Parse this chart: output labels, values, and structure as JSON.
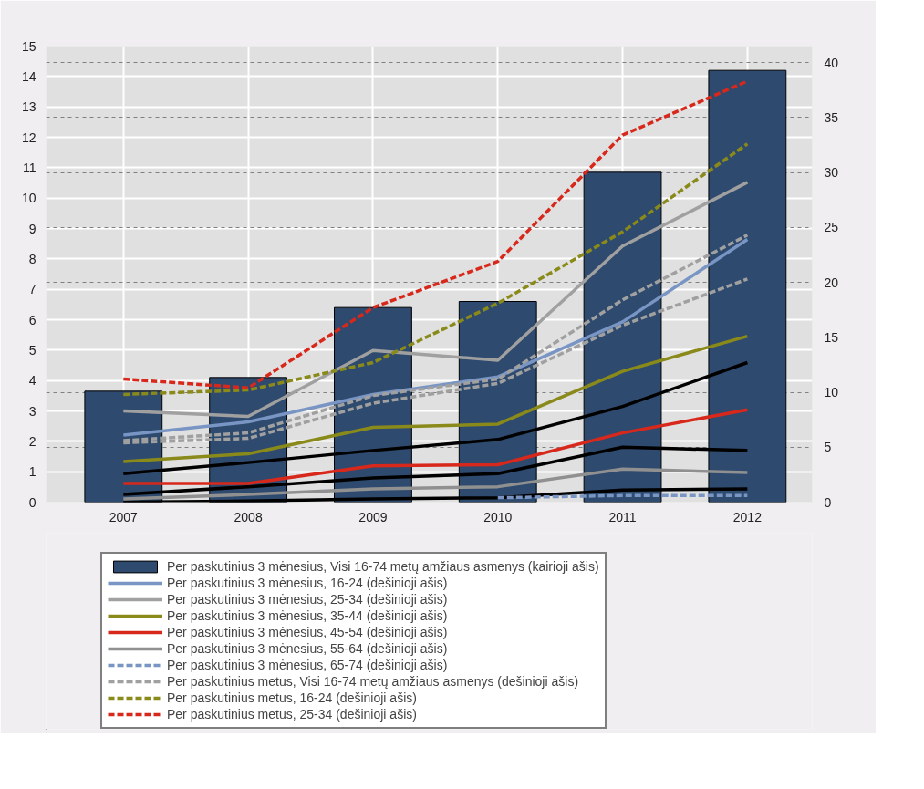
{
  "chart_data": {
    "type": "bar",
    "categories": [
      "2007",
      "2008",
      "2009",
      "2010",
      "2011",
      "2012"
    ],
    "ylim": [
      0,
      15
    ],
    "yticks": [
      0,
      1,
      2,
      3,
      4,
      5,
      6,
      7,
      8,
      9,
      10,
      11,
      12,
      13,
      14,
      15
    ],
    "y2lim": [
      0,
      41.5
    ],
    "y2ticks": [
      0,
      5,
      10,
      15,
      20,
      25,
      30,
      35,
      40
    ],
    "grid": true,
    "legend": "bottom",
    "series": [
      {
        "name": "Per paskutinius 3 mėnesius, Visi 16-74 metų amžiaus asmenys (kairioji ašis)",
        "color": "#2e4a6e",
        "values": [
          3.65,
          4.1,
          6.4,
          6.6,
          10.85,
          14.2
        ]
      },
      {
        "name": "Per paskutinius 3 mėnesius, 16-24 (dešinioji ašis)",
        "type": "line",
        "axis": "y2",
        "line_style": "solid",
        "color": "#7895c4",
        "values": [
          6.1,
          7.3,
          9.8,
          11.4,
          16.4,
          23.9
        ]
      },
      {
        "name": "Per paskutinius 3 mėnesius, 25-34 (dešinioji ašis)",
        "type": "line",
        "axis": "y2",
        "line_style": "solid",
        "color": "#a0a0a0",
        "values": [
          8.3,
          7.8,
          13.8,
          12.9,
          23.3,
          29.1
        ]
      },
      {
        "name": "Per paskutinius 3 mėnesius, 35-44 (dešinioji ašis)",
        "type": "line",
        "axis": "y2",
        "line_style": "solid",
        "color": "#8a8a1a",
        "values": [
          3.7,
          4.4,
          6.8,
          7.1,
          11.9,
          15.1
        ]
      },
      {
        "name": "Per paskutinius 3 mėnesius, 45-54 (dešinioji ašis)",
        "type": "line",
        "axis": "y2",
        "line_style": "solid",
        "color": "#d8281c",
        "values": [
          1.7,
          1.7,
          3.3,
          3.4,
          6.3,
          8.4
        ]
      },
      {
        "name": "Per paskutinius 3 mėnesius, 55-64 (dešinioji ašis)",
        "type": "line",
        "axis": "y2",
        "line_style": "solid",
        "color": "#909090",
        "values": [
          0.3,
          0.7,
          1.2,
          1.4,
          3.0,
          2.7
        ]
      },
      {
        "name": "Per paskutinius 3 mėnesius, 65-74 (dešinioji ašis)",
        "type": "line",
        "axis": "y2",
        "line_style": "dashed",
        "color": "#7895c4",
        "values": [
          null,
          null,
          null,
          0.4,
          0.6,
          0.6
        ]
      },
      {
        "name": "Per paskutinius metus, Visi 16-74 metų amžiaus asmenys (dešinioji ašis)",
        "type": "line",
        "axis": "y2",
        "line_style": "dashed",
        "color": "#a0a0a0",
        "values": [
          5.6,
          6.3,
          9.7,
          11.2,
          18.4,
          24.3
        ]
      },
      {
        "name": "Per paskutinius metus, 16-24 (dešinioji ašis)",
        "type": "line",
        "axis": "y2",
        "line_style": "dashed",
        "color": "#8a8a1a",
        "values": [
          9.8,
          10.2,
          12.7,
          18.1,
          24.6,
          32.6
        ]
      },
      {
        "name": "Per paskutinius metus, 25-34 (dešinioji ašis)",
        "type": "line",
        "axis": "y2",
        "line_style": "dashed",
        "color": "#d8281c",
        "values": [
          11.2,
          10.4,
          17.7,
          21.9,
          33.4,
          38.3
        ]
      },
      {
        "type": "line",
        "axis": "y2",
        "line_style": "dashed",
        "color": "#a0a0a0",
        "values": [
          5.4,
          5.8,
          9.0,
          10.8,
          16.1,
          20.3
        ]
      },
      {
        "type": "line",
        "axis": "y2",
        "line_style": "solid",
        "color": "#000000",
        "values": [
          2.6,
          3.6,
          4.7,
          5.7,
          8.7,
          12.7
        ]
      },
      {
        "type": "line",
        "axis": "y2",
        "line_style": "solid",
        "color": "#000000",
        "values": [
          0.7,
          1.4,
          2.2,
          2.6,
          5.0,
          4.7
        ]
      },
      {
        "type": "line",
        "axis": "y2",
        "line_style": "solid",
        "color": "#000000",
        "values": [
          0.0,
          0.1,
          0.3,
          0.4,
          1.1,
          1.2
        ]
      }
    ]
  }
}
